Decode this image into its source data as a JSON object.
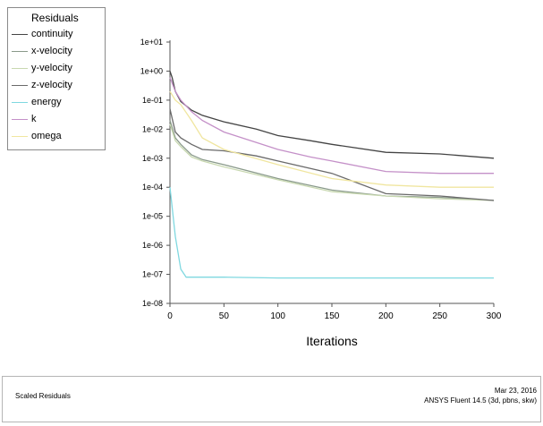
{
  "chart_data": {
    "type": "line",
    "title": "",
    "xlabel": "Iterations",
    "ylabel": "",
    "yscale": "log",
    "xlim": [
      0,
      300
    ],
    "ylim": [
      1e-08,
      10
    ],
    "xticks": [
      0,
      50,
      100,
      150,
      200,
      250,
      300
    ],
    "xtick_labels": [
      "0",
      "50",
      "100",
      "150",
      "200",
      "250",
      "300"
    ],
    "yticks": [
      10.0,
      1.0,
      0.1,
      0.01,
      0.001,
      0.0001,
      1e-05,
      1e-06,
      1e-07,
      1e-08
    ],
    "ytick_labels": [
      "1e+01",
      "1e+00",
      "1e-01",
      "1e-02",
      "1e-03",
      "1e-04",
      "1e-05",
      "1e-06",
      "1e-07",
      "1e-08"
    ],
    "grid": false,
    "legend_title": "Residuals",
    "legend_position": "top-left",
    "series": [
      {
        "name": "continuity",
        "color": "#444444",
        "x": [
          0,
          2,
          5,
          10,
          20,
          30,
          50,
          80,
          100,
          130,
          150,
          200,
          250,
          300
        ],
        "y": [
          1.0,
          0.6,
          0.2,
          0.09,
          0.045,
          0.03,
          0.018,
          0.01,
          0.006,
          0.004,
          0.003,
          0.0016,
          0.0014,
          0.001
        ]
      },
      {
        "name": "x-velocity",
        "color": "#8a9a8a",
        "x": [
          0,
          5,
          10,
          20,
          30,
          50,
          100,
          150,
          200,
          250,
          300
        ],
        "y": [
          0.02,
          0.005,
          0.003,
          0.0013,
          0.0009,
          0.0006,
          0.0002,
          8e-05,
          5e-05,
          4.5e-05,
          3.5e-05
        ]
      },
      {
        "name": "y-velocity",
        "color": "#c8d8b0",
        "x": [
          0,
          5,
          10,
          20,
          30,
          50,
          100,
          150,
          200,
          250,
          300
        ],
        "y": [
          0.015,
          0.004,
          0.0025,
          0.0011,
          0.0008,
          0.0005,
          0.00018,
          7e-05,
          5e-05,
          4e-05,
          3.5e-05
        ]
      },
      {
        "name": "z-velocity",
        "color": "#6a6a6a",
        "x": [
          0,
          5,
          10,
          20,
          30,
          50,
          80,
          100,
          150,
          200,
          250,
          300
        ],
        "y": [
          0.05,
          0.008,
          0.005,
          0.003,
          0.002,
          0.0018,
          0.0012,
          0.0008,
          0.0003,
          6e-05,
          5e-05,
          3.5e-05
        ]
      },
      {
        "name": "energy",
        "color": "#7fd8e0",
        "x": [
          0,
          5,
          10,
          15,
          20,
          50,
          100,
          150,
          200,
          250,
          300
        ],
        "y": [
          0.0001,
          2e-06,
          1.5e-07,
          8e-08,
          8e-08,
          8e-08,
          7.5e-08,
          7.5e-08,
          7.5e-08,
          7.5e-08,
          7.5e-08
        ]
      },
      {
        "name": "k",
        "color": "#c490c8",
        "x": [
          0,
          5,
          10,
          20,
          30,
          50,
          100,
          130,
          150,
          200,
          250,
          300
        ],
        "y": [
          0.6,
          0.2,
          0.1,
          0.04,
          0.02,
          0.008,
          0.002,
          0.0011,
          0.0008,
          0.00035,
          0.0003,
          0.0003
        ]
      },
      {
        "name": "omega",
        "color": "#f0e6a0",
        "x": [
          0,
          5,
          10,
          20,
          30,
          50,
          100,
          150,
          200,
          250,
          300
        ],
        "y": [
          0.2,
          0.1,
          0.07,
          0.02,
          0.005,
          0.002,
          0.0006,
          0.0002,
          0.00012,
          0.0001,
          0.0001
        ]
      }
    ]
  },
  "footer": {
    "left_title": "Scaled Residuals",
    "date": "Mar 23, 2016",
    "software": "ANSYS Fluent 14.5 (3d, pbns, skw)"
  }
}
